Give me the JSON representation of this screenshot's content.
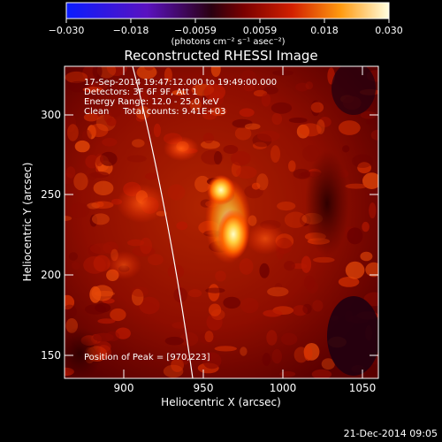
{
  "colorbar": {
    "ticks": [
      "−0.030",
      "−0.018",
      "−0.0059",
      "0.0059",
      "0.018",
      "0.030"
    ],
    "unit_label": "(photons cm⁻² s⁻¹ asec⁻²)"
  },
  "plot": {
    "title": "Reconstructed RHESSI Image",
    "xlabel": "Heliocentric X (arcsec)",
    "ylabel": "Heliocentric Y (arcsec)",
    "x_ticks": [
      "900",
      "950",
      "1000",
      "1050"
    ],
    "y_ticks": [
      "300",
      "250",
      "200",
      "150"
    ]
  },
  "annotations": {
    "line1": "17-Sep-2014 19:47:12.000 to 19:49:00.000",
    "line2": "Detectors: 3F 6F 9F, Att 1",
    "line3": "Energy Range: 12.0 - 25.0 keV",
    "line4": "Clean     Total counts: 9.41E+03",
    "peak": "Position of Peak = [970,223]"
  },
  "footer": {
    "date": "21-Dec-2014 09:05"
  },
  "colors": {
    "frame": "#ffffff",
    "limb": "#ffffff"
  }
}
